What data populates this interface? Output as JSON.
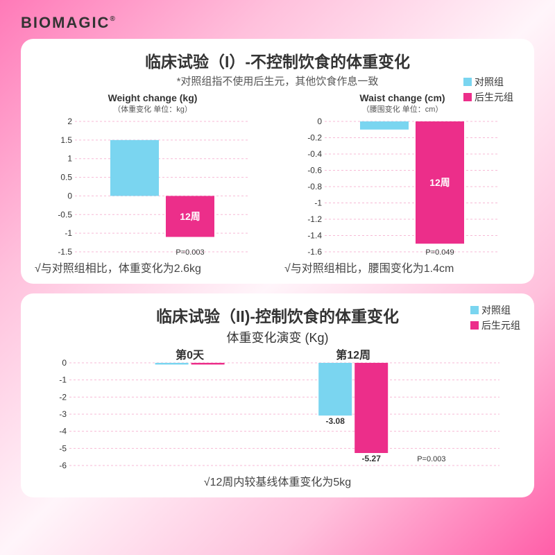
{
  "brand": "BIOMAGIC",
  "legend": {
    "control": {
      "label": "对照组",
      "color": "#7ad5f0"
    },
    "treatment": {
      "label": "后生元组",
      "color": "#ec2e8a"
    }
  },
  "panel1": {
    "title": "临床试验（I）-不控制饮食的体重变化",
    "subtitle": "*对照组指不使用后生元，其他饮食作息一致",
    "chart1": {
      "title": "Weight change (kg)",
      "subtitle": "（体重变化 单位：kg）",
      "ylim": [
        -1.5,
        2
      ],
      "yticks": [
        2,
        1.5,
        1,
        0.5,
        0,
        -0.5,
        -1,
        -1.5
      ],
      "bars": [
        {
          "value": 1.5,
          "color": "#7ad5f0",
          "label": ""
        },
        {
          "value": -1.1,
          "color": "#ec2e8a",
          "label": "12周"
        }
      ],
      "p_value": "P=0.003",
      "grid_color": "#f7b9d5"
    },
    "chart2": {
      "title": "Waist change (cm)",
      "subtitle": "（腰围变化 单位：cm）",
      "ylim": [
        -1.6,
        0
      ],
      "yticks": [
        0,
        -0.2,
        -0.4,
        -0.6,
        -0.8,
        -1,
        -1.2,
        -1.4,
        -1.6
      ],
      "bars": [
        {
          "value": -0.1,
          "color": "#7ad5f0",
          "label": ""
        },
        {
          "value": -1.5,
          "color": "#ec2e8a",
          "label": "12周"
        }
      ],
      "p_value": "P=0.049",
      "grid_color": "#f7b9d5"
    },
    "note1": "√与对照组相比，体重变化为2.6kg",
    "note2": "√与对照组相比，腰围变化为1.4cm"
  },
  "panel2": {
    "title": "临床试验（II)-控制饮食的体重变化",
    "subtitle": "体重变化演变 (Kg)",
    "ylim": [
      -6,
      0
    ],
    "yticks": [
      0,
      -1,
      -2,
      -3,
      -4,
      -5,
      -6
    ],
    "groups": [
      {
        "label": "第0天",
        "bars": [
          {
            "value": -0.1,
            "color": "#7ad5f0"
          },
          {
            "value": -0.1,
            "color": "#ec2e8a"
          }
        ]
      },
      {
        "label": "第12周",
        "bars": [
          {
            "value": -3.08,
            "color": "#7ad5f0",
            "val_label": "-3.08"
          },
          {
            "value": -5.27,
            "color": "#ec2e8a",
            "val_label": "-5.27"
          }
        ]
      }
    ],
    "p_value": "P=0.003",
    "grid_color": "#f7b9d5",
    "note": "√12周内较基线体重变化为5kg"
  }
}
